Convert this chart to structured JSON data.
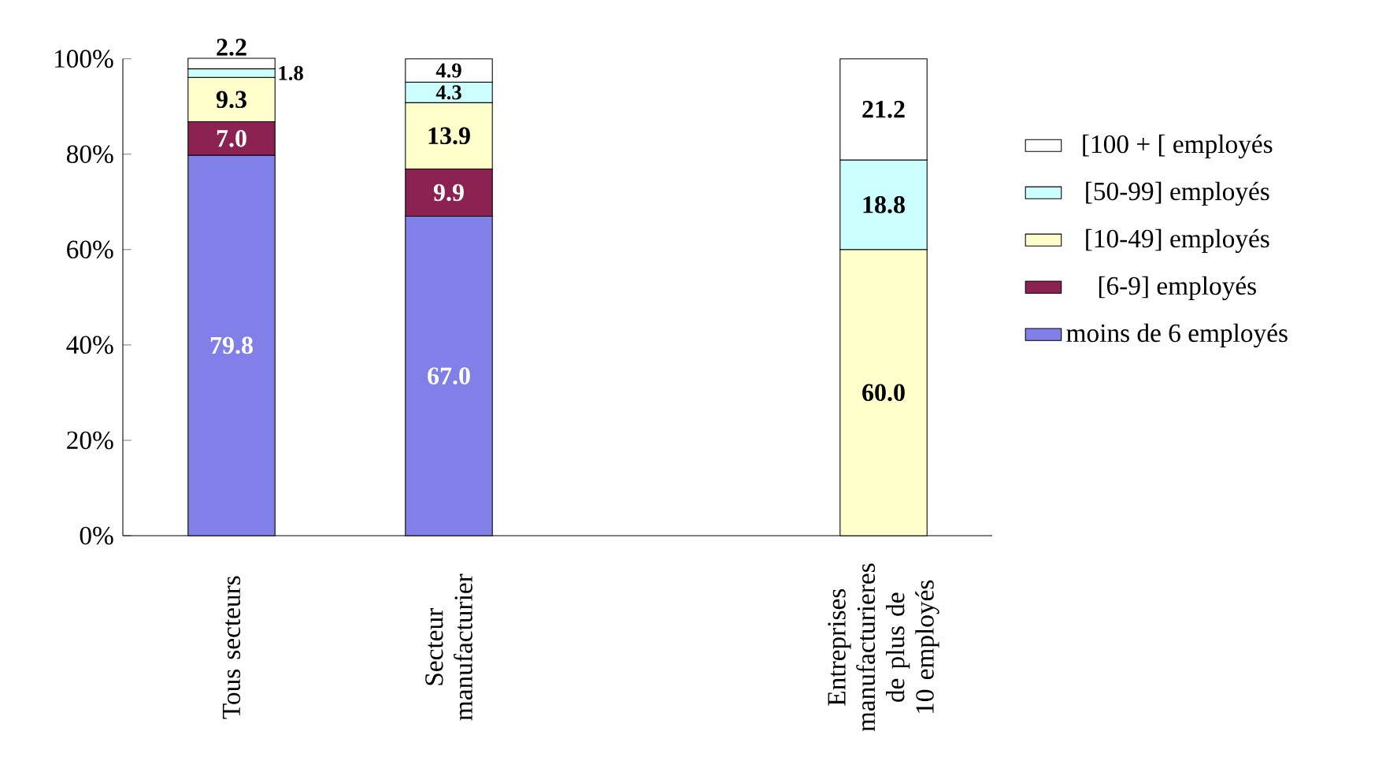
{
  "chart_data": {
    "type": "bar",
    "stacked": true,
    "legend": "right",
    "grid": false,
    "categories": [
      "Tous secteurs",
      "Secteur manufacturier",
      null,
      "Entreprises manufacturieres de plus de 10 employés"
    ],
    "ylim": [
      0,
      100
    ],
    "yticks": [
      {
        "value": 0,
        "label": "0%"
      },
      {
        "value": 20,
        "label": "20%"
      },
      {
        "value": 40,
        "label": "40%"
      },
      {
        "value": 60,
        "label": "60%"
      },
      {
        "value": 80,
        "label": "80%"
      },
      {
        "value": 100,
        "label": "100%"
      }
    ],
    "series": [
      {
        "name": "moins de 6 employés",
        "color": "#8080e8",
        "values": [
          79.8,
          67.0,
          null,
          null
        ],
        "value_labels": [
          "79.8",
          "67.0",
          null,
          null
        ]
      },
      {
        "name": "[6-9] employés",
        "color": "#8b2252",
        "values": [
          7.0,
          9.9,
          null,
          null
        ],
        "value_labels": [
          "7.0",
          "9.9",
          null,
          null
        ]
      },
      {
        "name": "[10-49] employés",
        "color": "#ffffcc",
        "values": [
          9.3,
          13.9,
          null,
          60.0
        ],
        "value_labels": [
          "9.3",
          "13.9",
          null,
          "60.0"
        ]
      },
      {
        "name": "[50-99] employés",
        "color": "#ccffff",
        "values": [
          1.8,
          4.3,
          null,
          18.8
        ],
        "value_labels": [
          "1.8",
          "4.3",
          null,
          "18.8"
        ]
      },
      {
        "name": "[100 + [ employés",
        "color": "#ffffff",
        "values": [
          2.2,
          4.9,
          null,
          21.2
        ],
        "value_labels": [
          "2.2",
          "4.9",
          null,
          "21.2"
        ]
      }
    ]
  }
}
